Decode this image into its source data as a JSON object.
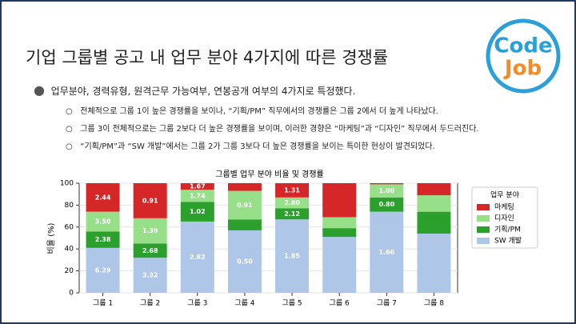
{
  "slide": {
    "title": "기업 그룹별 공고 내 업무 분야 4가지에 따른 경쟁률",
    "logo": [
      "Code",
      "Job"
    ],
    "bullet": "업무분야, 경력유형, 원격근무 가능여부, 연봉공개 여부의 4가지로 특정했다.",
    "subs": [
      "전체적으로 그룹 1이 높은 경쟁률을 보이나, “기획/PM” 직무에서의 경쟁률은 그룹 2에서 더 높게 나타났다.",
      "그룹 3이 전체적으로는 그룹 2보다 더 높은 경쟁률을 보이며, 이러한 경향은 “마케팅”과 “디자인” 직무에서 두드러진다.",
      "“기획/PM”과 “SW 개발”에서는 그룹 2가 그룹 3보다 더 높은 경쟁률을 보이는 특이한 현상이 발견되었다."
    ]
  },
  "chart_data": {
    "type": "bar",
    "stacked": true,
    "title": "그룹별 업무 분야 비율 및 경쟁률",
    "ylabel": "비율 (%)",
    "legend_title": "업무 분야",
    "grid": true,
    "categories": [
      "그룹 1",
      "그룹 2",
      "그룹 3",
      "그룹 4",
      "그룹 5",
      "그룹 6",
      "그룹 7",
      "그룹 8"
    ],
    "ylim": [
      0,
      100
    ],
    "yticks": [
      0,
      20,
      40,
      60,
      80,
      100
    ],
    "series": [
      {
        "name": "마케팅",
        "color": "#d62728",
        "values": [
          26,
          32,
          6,
          7,
          13,
          31,
          1,
          11
        ],
        "rate_labels": [
          "2.44",
          "0.91",
          "1.67",
          null,
          "1.31",
          null,
          null,
          null
        ]
      },
      {
        "name": "디자인",
        "color": "#98df8a",
        "values": [
          18,
          23,
          11,
          26,
          10,
          10,
          12,
          15
        ],
        "rate_labels": [
          "3.50",
          "1.39",
          "1.74",
          "0.91",
          "2.80",
          null,
          "1.00",
          null
        ]
      },
      {
        "name": "기획/PM",
        "color": "#2ca02c",
        "values": [
          15,
          13,
          18,
          10,
          10,
          8,
          13,
          20
        ],
        "rate_labels": [
          "2.38",
          "2.68",
          "1.02",
          null,
          "2.12",
          null,
          "0.80",
          null
        ]
      },
      {
        "name": "SW 개발",
        "color": "#aec7e8",
        "values": [
          41,
          32,
          65,
          57,
          67,
          51,
          74,
          54
        ],
        "rate_labels": [
          "6.29",
          "3.32",
          "2.82",
          "0.50",
          "1.85",
          null,
          "1.66",
          null
        ]
      }
    ]
  }
}
